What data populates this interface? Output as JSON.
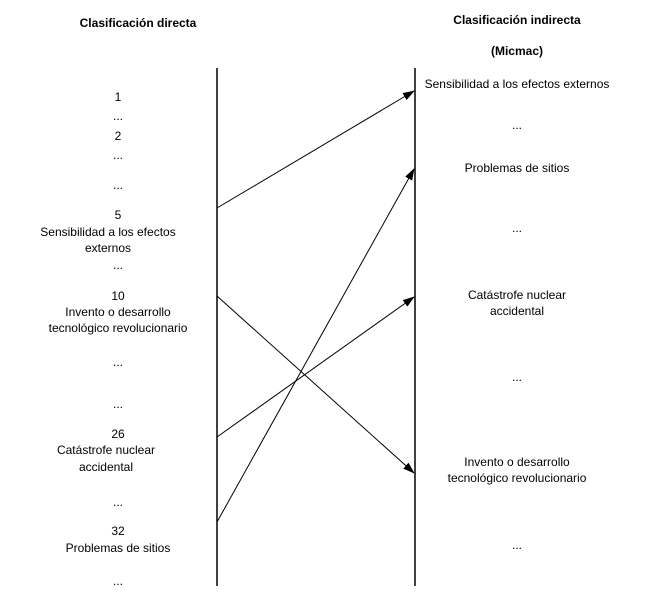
{
  "left": {
    "title": "Clasificación directa",
    "items": [
      "1",
      "...",
      "2",
      "...",
      "...",
      "5",
      "Sensibilidad a los efectos",
      "externos",
      "...",
      "10",
      "Invento o desarrollo",
      "tecnológico revolucionario",
      "...",
      "...",
      "26",
      "Catástrofe nuclear",
      "accidental",
      "...",
      "32",
      "Problemas de sitios",
      "..."
    ]
  },
  "right": {
    "title": "Clasificación indirecta",
    "subtitle": "(Micmac)",
    "items": [
      "Sensibilidad a los efectos externos",
      "...",
      "Problemas de sitios",
      "...",
      "Catástrofe nuclear",
      "accidental",
      "...",
      "Invento o desarrollo",
      "tecnológico revolucionario",
      "..."
    ]
  },
  "arrows": [
    {
      "from": "Sensibilidad a los efectos externos",
      "to": "Sensibilidad a los efectos externos"
    },
    {
      "from": "Invento o desarrollo tecnológico revolucionario",
      "to": "Invento o desarrollo tecnológico revolucionario"
    },
    {
      "from": "Catástrofe nuclear accidental",
      "to": "Catástrofe nuclear accidental"
    },
    {
      "from": "Problemas de sitios",
      "to": "Problemas de sitios"
    }
  ]
}
